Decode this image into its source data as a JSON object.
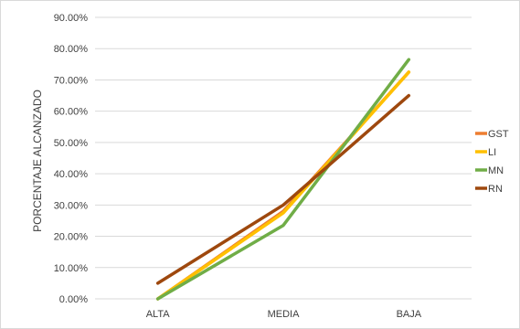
{
  "chart_data": {
    "type": "line",
    "title": "",
    "xlabel": "",
    "ylabel": "PORCENTAJE ALCANZADO",
    "categories": [
      "ALTA",
      "MEDIA",
      "BAJA"
    ],
    "y_ticks": [
      "0.00%",
      "10.00%",
      "20.00%",
      "30.00%",
      "40.00%",
      "50.00%",
      "60.00%",
      "70.00%",
      "80.00%",
      "90.00%"
    ],
    "ylim": [
      0,
      90
    ],
    "y_unit": "%",
    "grid": true,
    "legend_position": "right",
    "series": [
      {
        "name": "GST",
        "color": "#ED7D31",
        "values": [
          0,
          28,
          72.5
        ]
      },
      {
        "name": "LI",
        "color": "#FFC000",
        "values": [
          0,
          27.5,
          72.5
        ]
      },
      {
        "name": "MN",
        "color": "#70AD47",
        "values": [
          0,
          23.5,
          76.5
        ]
      },
      {
        "name": "RN",
        "color": "#9E480E",
        "values": [
          5,
          30,
          65
        ]
      }
    ]
  }
}
